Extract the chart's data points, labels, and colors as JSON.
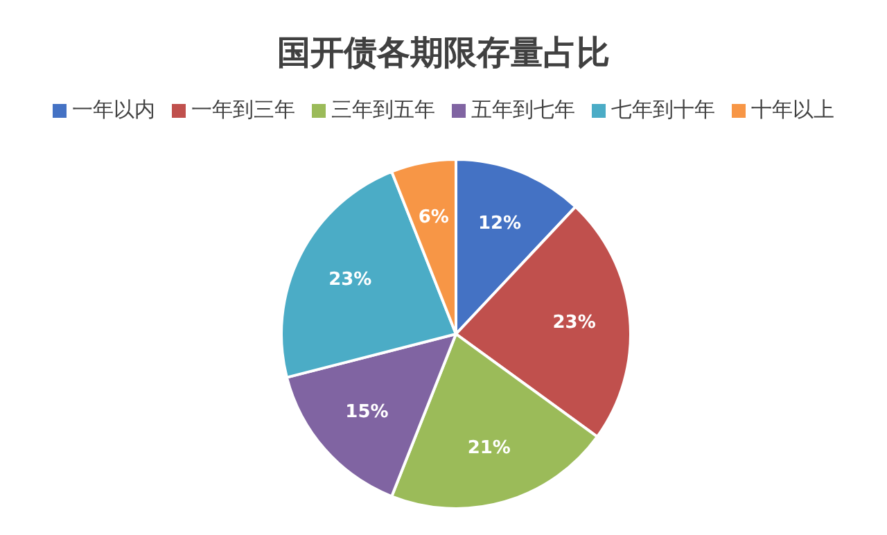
{
  "chart_data": {
    "type": "pie",
    "title": "国开债各期限存量占比",
    "categories": [
      "一年以内",
      "一年到三年",
      "三年到五年",
      "五年到七年",
      "七年到十年",
      "十年以上"
    ],
    "values": [
      12,
      23,
      21,
      15,
      23,
      6
    ],
    "colors": [
      "#4472c4",
      "#c0504d",
      "#9bbb59",
      "#8064a2",
      "#4bacc6",
      "#f79646"
    ],
    "value_labels": [
      "12%",
      "23%",
      "21%",
      "15%",
      "23%",
      "6%"
    ],
    "legend": "top"
  }
}
